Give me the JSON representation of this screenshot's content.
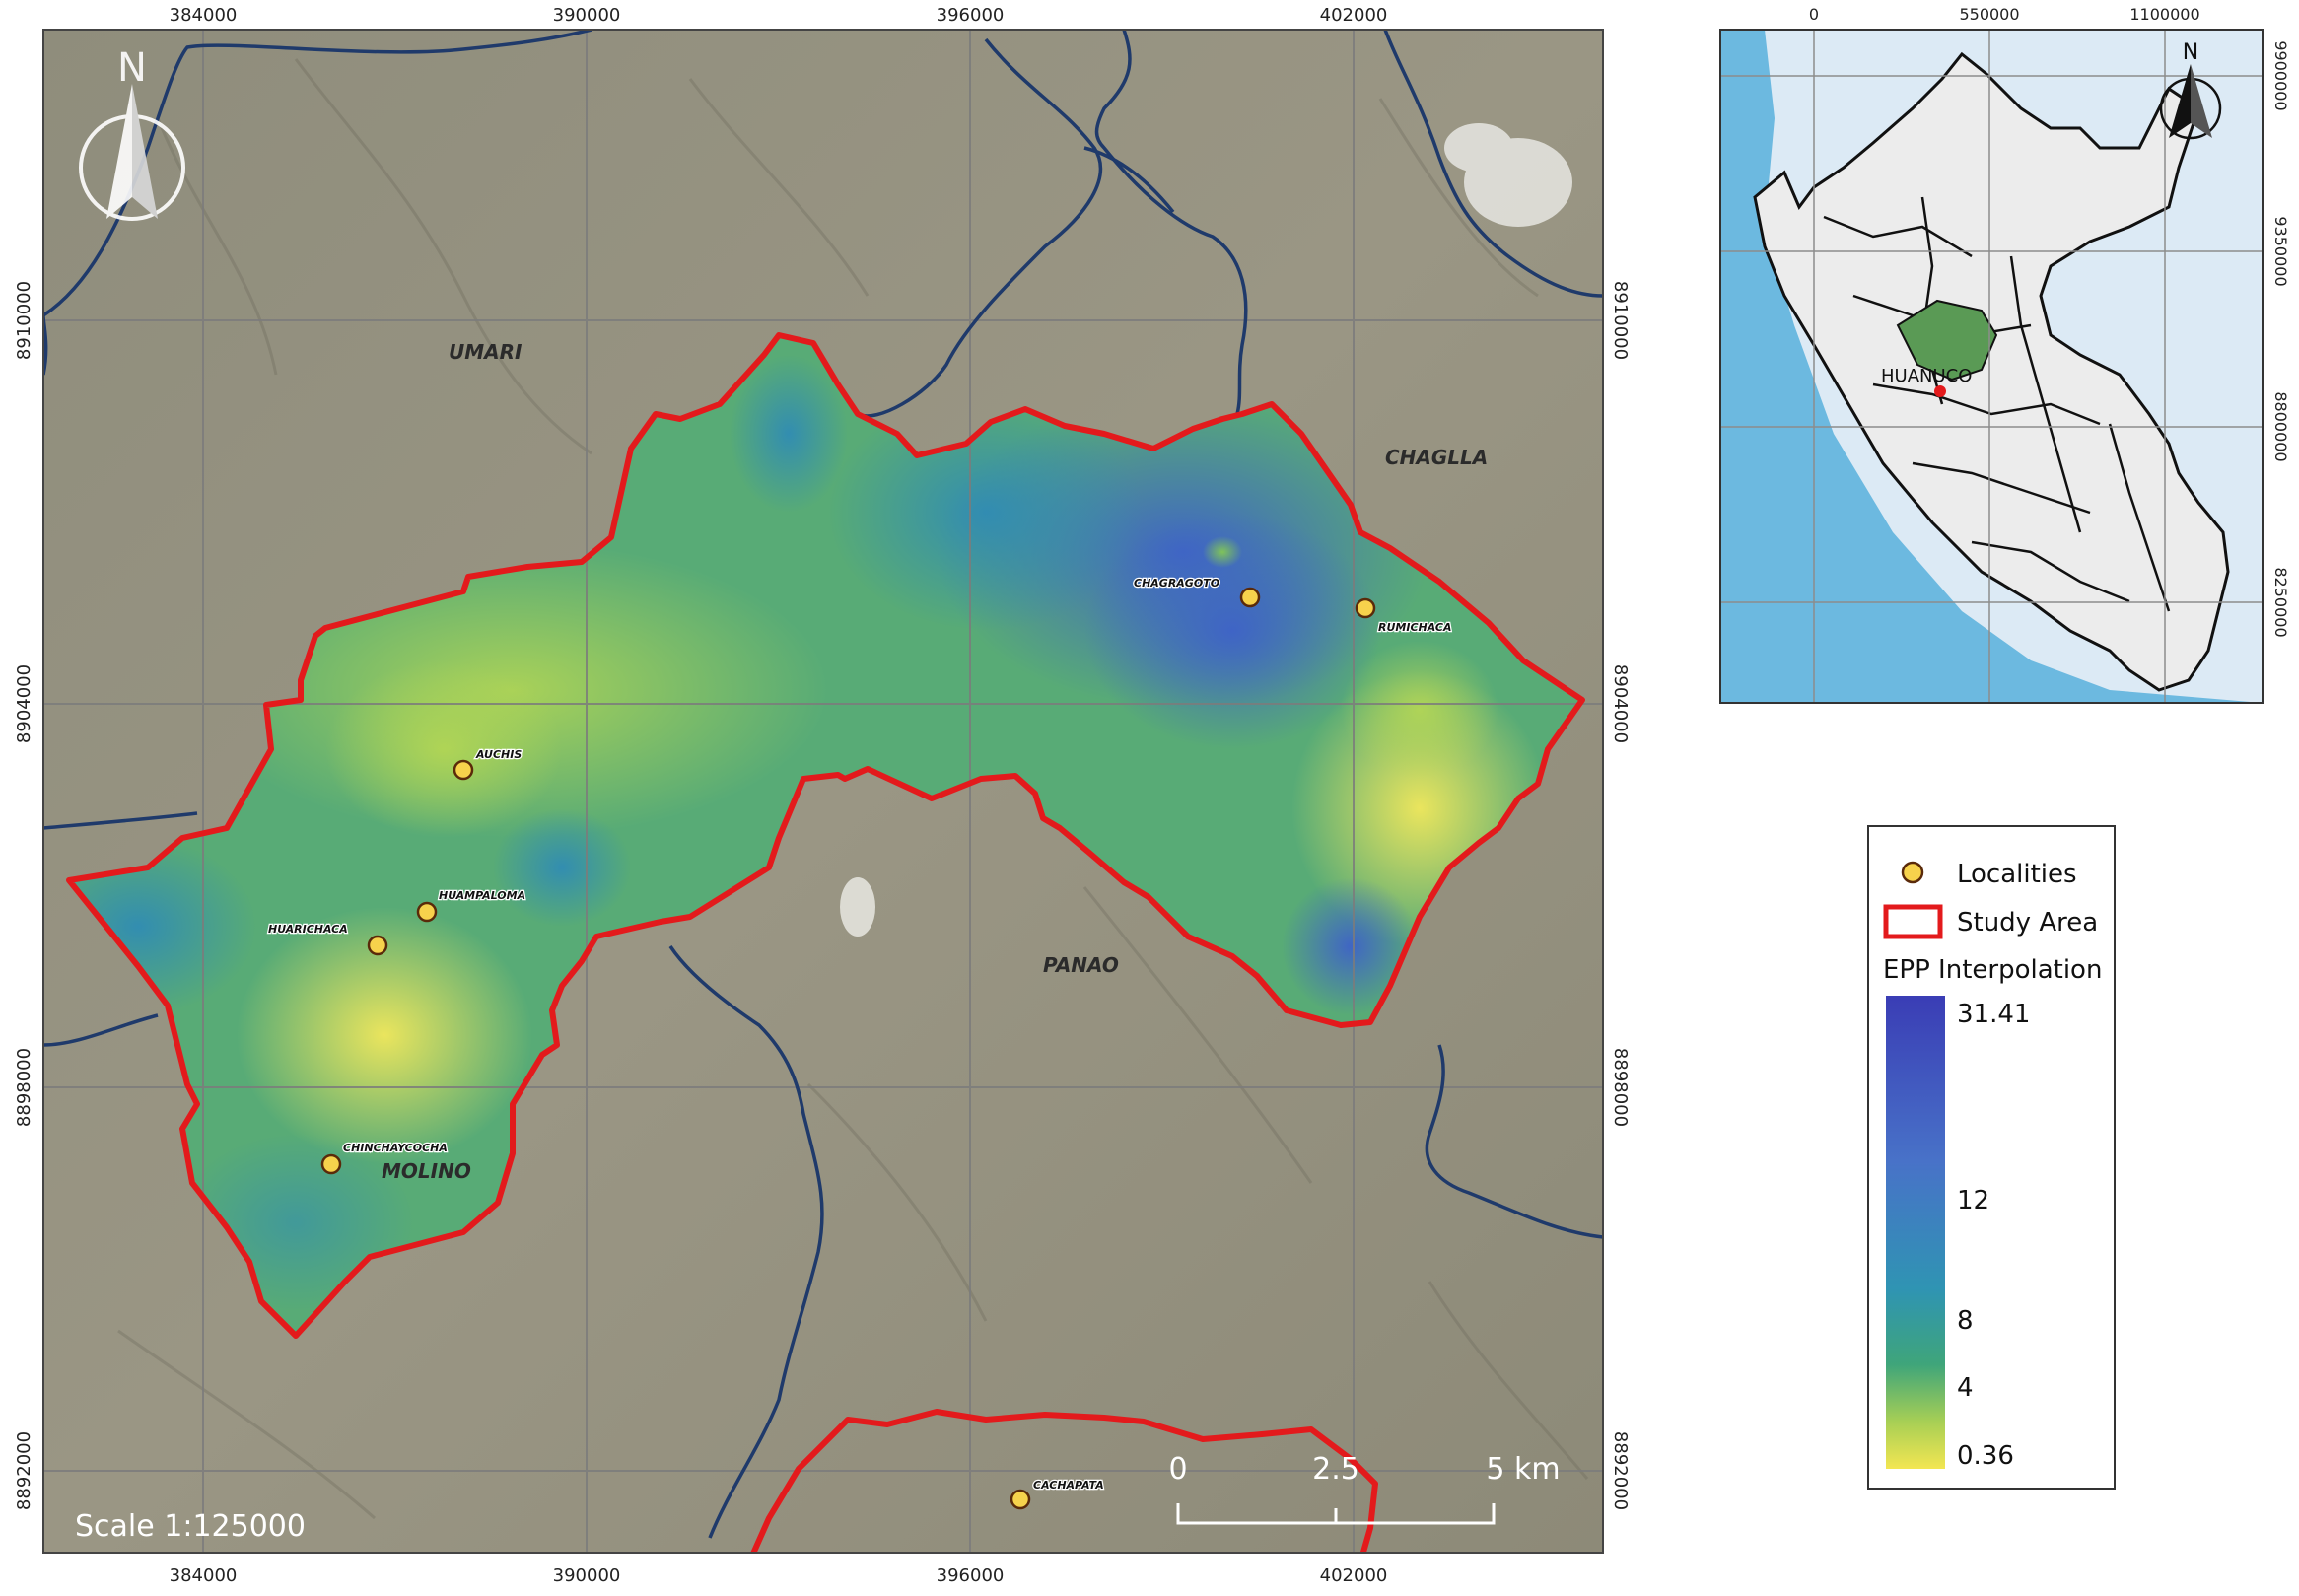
{
  "main_map": {
    "top_ticks": [
      "384000",
      "390000",
      "396000",
      "402000"
    ],
    "bottom_ticks": [
      "384000",
      "390000",
      "396000",
      "402000"
    ],
    "left_ticks": [
      "8910000",
      "8904000",
      "8898000",
      "8892000"
    ],
    "right_ticks": [
      "8910000",
      "8904000",
      "8898000",
      "8892000"
    ],
    "north_label": "N",
    "scale_text": "Scale 1:125000",
    "scalebar": {
      "labels": [
        "0",
        "2.5",
        "5 km"
      ]
    },
    "regions": [
      "UMARI",
      "CHAGLLA",
      "PANAO",
      "MOLINO"
    ],
    "localities": [
      "CHAGRAGOTO",
      "RUMICHACA",
      "AUCHIS",
      "HUAMPALOMA",
      "HUARICHACA",
      "CHINCHAYCOCHA",
      "CACHAPATA"
    ]
  },
  "inset": {
    "top_ticks": [
      "0",
      "550000",
      "1100000"
    ],
    "right_ticks": [
      "9900000",
      "9350000",
      "8800000",
      "8250000"
    ],
    "north_label": "N",
    "highlight_label": "HUANUCO"
  },
  "legend": {
    "localities_label": "Localities",
    "study_area_label": "Study Area",
    "interp_title": "EPP Interpolation",
    "ticks": [
      "31.41",
      "12",
      "8",
      "4",
      "0.36"
    ]
  },
  "colors": {
    "study_area_outline": "#e31a1c",
    "river": "#1f3a6b",
    "locality_fill": "#f7d24c",
    "ramp_high": "#3a3db5",
    "ramp_low": "#f3e652"
  }
}
